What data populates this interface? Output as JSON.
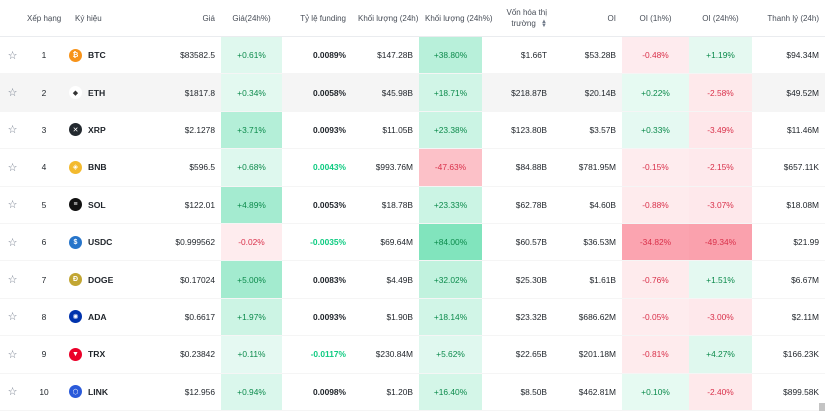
{
  "headers": {
    "rank": "Xếp hạng",
    "symbol": "Ký hiệu",
    "price": "Giá",
    "price_change": "Giá(24h%)",
    "funding": "Tỷ lệ funding",
    "volume": "Khối lượng (24h)",
    "volume_change": "Khối lượng (24h%)",
    "market_cap_line1": "Vốn hóa thị",
    "market_cap_line2": "trường",
    "oi": "OI",
    "oi_1h": "OI (1h%)",
    "oi_24h": "OI (24h%)",
    "liquidation": "Thanh lý (24h)"
  },
  "rows": [
    {
      "rank": "1",
      "symbol": "BTC",
      "icon": "bitcoin-icon",
      "iconColor": "#f7931a",
      "glyph": "₿",
      "price": "$83582.5",
      "price_change": "+0.61%",
      "funding": "0.0089%",
      "volume": "$147.28B",
      "volume_change": "+38.80%",
      "market_cap": "$1.66T",
      "oi": "$53.28B",
      "oi_1h": "-0.48%",
      "oi_24h": "+1.19%",
      "liquidation": "$94.34M"
    },
    {
      "rank": "2",
      "symbol": "ETH",
      "icon": "ethereum-icon",
      "iconColor": "#ffffff",
      "glyph": "◆",
      "price": "$1817.8",
      "price_change": "+0.34%",
      "funding": "0.0058%",
      "volume": "$45.98B",
      "volume_change": "+18.71%",
      "market_cap": "$218.87B",
      "oi": "$20.14B",
      "oi_1h": "+0.22%",
      "oi_24h": "-2.58%",
      "liquidation": "$49.52M"
    },
    {
      "rank": "3",
      "symbol": "XRP",
      "icon": "xrp-icon",
      "iconColor": "#23292f",
      "glyph": "✕",
      "price": "$2.1278",
      "price_change": "+3.71%",
      "funding": "0.0093%",
      "volume": "$11.05B",
      "volume_change": "+23.38%",
      "market_cap": "$123.80B",
      "oi": "$3.57B",
      "oi_1h": "+0.33%",
      "oi_24h": "-3.49%",
      "liquidation": "$11.46M"
    },
    {
      "rank": "4",
      "symbol": "BNB",
      "icon": "bnb-icon",
      "iconColor": "#f3ba2f",
      "glyph": "◈",
      "price": "$596.5",
      "price_change": "+0.68%",
      "funding": "0.0043%",
      "volume": "$993.76M",
      "volume_change": "-47.63%",
      "market_cap": "$84.88B",
      "oi": "$781.95M",
      "oi_1h": "-0.15%",
      "oi_24h": "-2.15%",
      "liquidation": "$657.11K"
    },
    {
      "rank": "5",
      "symbol": "SOL",
      "icon": "solana-icon",
      "iconColor": "#111111",
      "glyph": "≡",
      "price": "$122.01",
      "price_change": "+4.89%",
      "funding": "0.0053%",
      "volume": "$18.78B",
      "volume_change": "+23.33%",
      "market_cap": "$62.78B",
      "oi": "$4.60B",
      "oi_1h": "-0.88%",
      "oi_24h": "-3.07%",
      "liquidation": "$18.08M"
    },
    {
      "rank": "6",
      "symbol": "USDC",
      "icon": "usdc-icon",
      "iconColor": "#2775ca",
      "glyph": "$",
      "price": "$0.999562",
      "price_change": "-0.02%",
      "funding": "-0.0035%",
      "volume": "$69.64M",
      "volume_change": "+84.00%",
      "market_cap": "$60.57B",
      "oi": "$36.53M",
      "oi_1h": "-34.82%",
      "oi_24h": "-49.34%",
      "liquidation": "$21.99"
    },
    {
      "rank": "7",
      "symbol": "DOGE",
      "icon": "dogecoin-icon",
      "iconColor": "#c2a633",
      "glyph": "Ð",
      "price": "$0.17024",
      "price_change": "+5.00%",
      "funding": "0.0083%",
      "volume": "$4.49B",
      "volume_change": "+32.02%",
      "market_cap": "$25.30B",
      "oi": "$1.61B",
      "oi_1h": "-0.76%",
      "oi_24h": "+1.51%",
      "liquidation": "$6.67M"
    },
    {
      "rank": "8",
      "symbol": "ADA",
      "icon": "cardano-icon",
      "iconColor": "#0033ad",
      "glyph": "✺",
      "price": "$0.6617",
      "price_change": "+1.97%",
      "funding": "0.0093%",
      "volume": "$1.90B",
      "volume_change": "+18.14%",
      "market_cap": "$23.32B",
      "oi": "$686.62M",
      "oi_1h": "-0.05%",
      "oi_24h": "-3.00%",
      "liquidation": "$2.11M"
    },
    {
      "rank": "9",
      "symbol": "TRX",
      "icon": "tron-icon",
      "iconColor": "#eb0029",
      "glyph": "▼",
      "price": "$0.23842",
      "price_change": "+0.11%",
      "funding": "-0.0117%",
      "volume": "$230.84M",
      "volume_change": "+5.62%",
      "market_cap": "$22.65B",
      "oi": "$201.18M",
      "oi_1h": "-0.81%",
      "oi_24h": "+4.27%",
      "liquidation": "$166.23K"
    },
    {
      "rank": "10",
      "symbol": "LINK",
      "icon": "chainlink-icon",
      "iconColor": "#2a5ada",
      "glyph": "⬡",
      "price": "$12.956",
      "price_change": "+0.94%",
      "funding": "0.0098%",
      "volume": "$1.20B",
      "volume_change": "+16.40%",
      "market_cap": "$8.50B",
      "oi": "$462.81M",
      "oi_1h": "+0.10%",
      "oi_24h": "-2.40%",
      "liquidation": "$899.58K"
    }
  ],
  "colors": {
    "positive_text": "#0b8a4b",
    "negative_text": "#d9304a",
    "funding_negative_text": "#0ecb81"
  }
}
